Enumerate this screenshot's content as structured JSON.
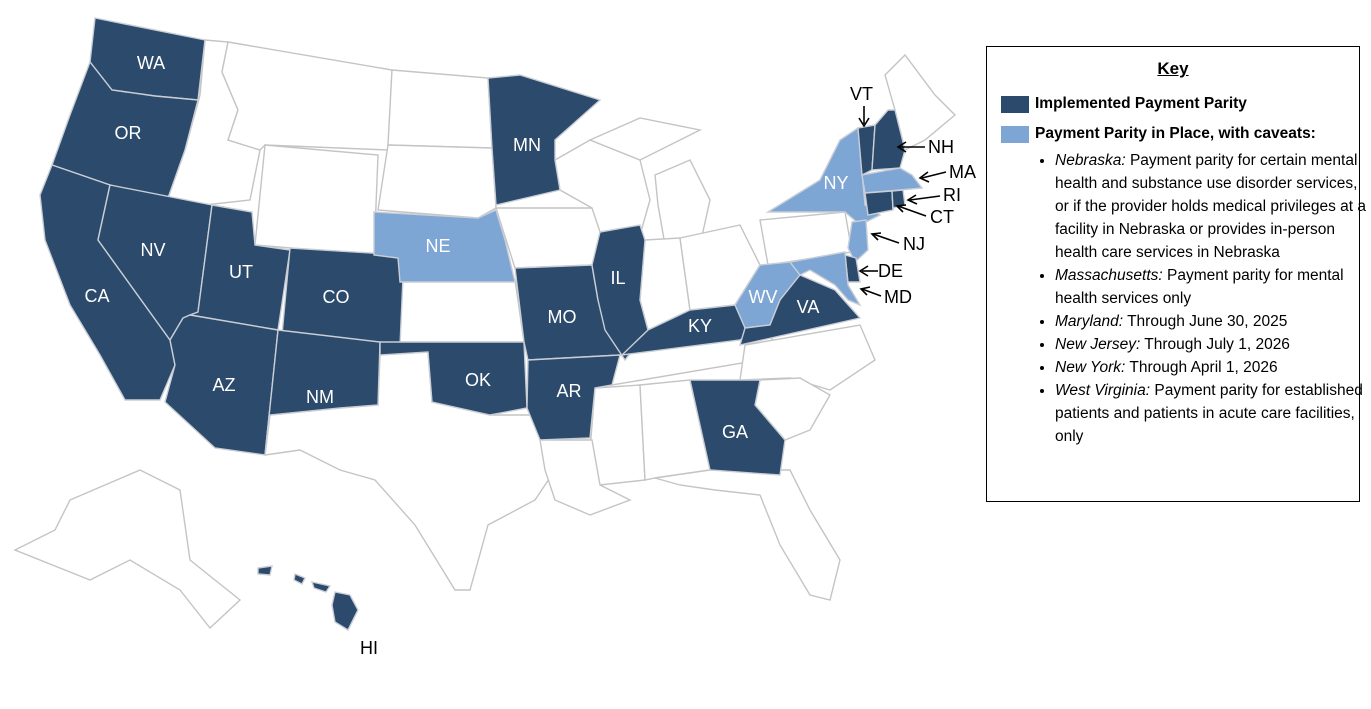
{
  "colors": {
    "implemented": "#2c4a6b",
    "caveat": "#7ea6d4",
    "none": "#ffffff"
  },
  "states": [
    {
      "code": "WA",
      "status": "implemented"
    },
    {
      "code": "OR",
      "status": "implemented"
    },
    {
      "code": "CA",
      "status": "implemented"
    },
    {
      "code": "NV",
      "status": "implemented"
    },
    {
      "code": "UT",
      "status": "implemented"
    },
    {
      "code": "CO",
      "status": "implemented"
    },
    {
      "code": "AZ",
      "status": "implemented"
    },
    {
      "code": "NM",
      "status": "implemented"
    },
    {
      "code": "MN",
      "status": "implemented"
    },
    {
      "code": "NE",
      "status": "caveat"
    },
    {
      "code": "OK",
      "status": "implemented"
    },
    {
      "code": "MO",
      "status": "implemented"
    },
    {
      "code": "AR",
      "status": "implemented"
    },
    {
      "code": "IL",
      "status": "implemented"
    },
    {
      "code": "KY",
      "status": "implemented"
    },
    {
      "code": "VA",
      "status": "implemented"
    },
    {
      "code": "WV",
      "status": "caveat"
    },
    {
      "code": "GA",
      "status": "implemented"
    },
    {
      "code": "NY",
      "status": "caveat"
    },
    {
      "code": "VT",
      "status": "implemented"
    },
    {
      "code": "NH",
      "status": "implemented"
    },
    {
      "code": "MA",
      "status": "caveat"
    },
    {
      "code": "RI",
      "status": "implemented"
    },
    {
      "code": "CT",
      "status": "implemented"
    },
    {
      "code": "NJ",
      "status": "caveat"
    },
    {
      "code": "DE",
      "status": "implemented"
    },
    {
      "code": "MD",
      "status": "caveat"
    },
    {
      "code": "HI",
      "status": "implemented"
    }
  ],
  "key": {
    "title": "Key",
    "implemented_label": "Implemented Payment Parity",
    "caveat_label": "Payment Parity in Place, with caveats:",
    "caveats": [
      {
        "state": "Nebraska:",
        "text": " Payment parity for certain mental health and substance use disorder services, or if the provider holds medical privileges at a facility in Nebraska or provides in-person health care services in Nebraska"
      },
      {
        "state": "Massachusetts:",
        "text": " Payment parity for mental health services only"
      },
      {
        "state": "Maryland:",
        "text": " Through June 30, 2025"
      },
      {
        "state": "New Jersey:",
        "text": " Through July 1, 2026"
      },
      {
        "state": "New York:",
        "text": " Through April 1, 2026"
      },
      {
        "state": "West Virginia:",
        "text": " Payment parity for established patients and patients in acute care facilities, only"
      }
    ]
  }
}
